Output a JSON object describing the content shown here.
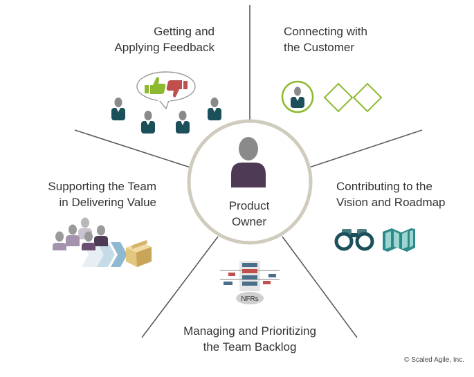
{
  "center": {
    "line1": "Product",
    "line2": "Owner"
  },
  "sections": {
    "feedback": {
      "line1": "Getting and",
      "line2": "Applying Feedback"
    },
    "customer": {
      "line1": "Connecting with",
      "line2": "the Customer"
    },
    "vision": {
      "line1": "Contributing to the",
      "line2": "Vision and Roadmap"
    },
    "backlog": {
      "line1": "Managing and Prioritizing",
      "line2": "the Team Backlog",
      "nfr_label": "NFRs"
    },
    "team": {
      "line1": "Supporting the Team",
      "line2": "in Delivering Value"
    }
  },
  "copyright": "© Scaled Agile, Inc.",
  "colors": {
    "spoke": "#5a5a5a",
    "center_ring": "#cfcbbd",
    "purple": "#4f3a56",
    "gray_person": "#8a8a8a",
    "teal": "#1b4f5a",
    "green": "#8db92e",
    "red": "#c0504d"
  }
}
